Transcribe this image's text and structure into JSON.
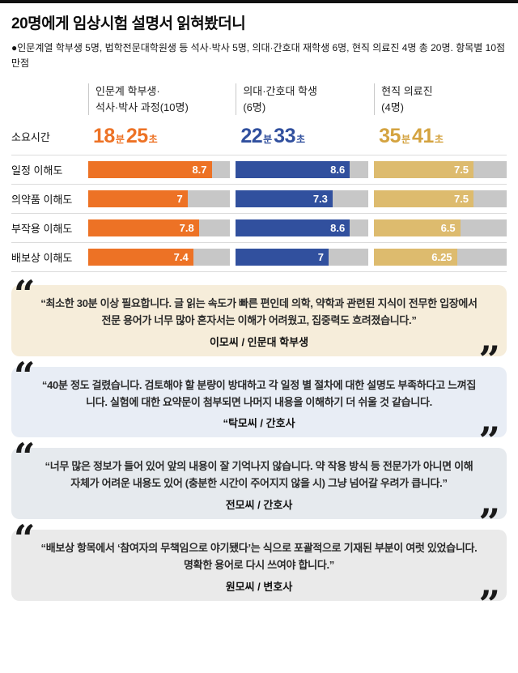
{
  "header": {
    "title": "20명에게 임상시험 설명서 읽혀봤더니",
    "subtitle": "●인문계열 학부생 5명, 법학전문대학원생 등 석사·박사 5명, 의대·간호대 재학생 6명, 현직 의료진 4명 총 20명. 항목별 10점 만점"
  },
  "chart_data": {
    "type": "bar",
    "title": "20명에게 임상시험 설명서 읽혀봤더니",
    "time_row_label": "소요시간",
    "minute_unit": "분",
    "second_unit": "초",
    "max": 10,
    "grid": false,
    "track_color": "#c7c7c7",
    "groups": [
      {
        "name": "인문계 학부생·\n석사·박사 과정(10명)",
        "bar_color": "#ED7225",
        "time_color": "#ED7225",
        "minutes": "18",
        "seconds": "25"
      },
      {
        "name": "의대·간호대 학생\n(6명)",
        "bar_color": "#31509E",
        "time_color": "#31509E",
        "minutes": "22",
        "seconds": "33"
      },
      {
        "name": "현직 의료진\n(4명)",
        "bar_color": "#DDBB6E",
        "time_color": "#D4A340",
        "minutes": "35",
        "seconds": "41"
      }
    ],
    "categories": [
      "일정 이해도",
      "의약품 이해도",
      "부작용 이해도",
      "배보상 이해도"
    ],
    "series": [
      {
        "name": "인문계 학부생·석사·박사 과정(10명)",
        "values": [
          8.7,
          7,
          7.8,
          7.4
        ]
      },
      {
        "name": "의대·간호대 학생(6명)",
        "values": [
          8.6,
          7.3,
          8.6,
          7
        ]
      },
      {
        "name": "현직 의료진(4명)",
        "values": [
          7.5,
          7.5,
          6.5,
          6.25
        ]
      }
    ]
  },
  "quote_icons": {
    "open": "“",
    "close": "”"
  },
  "quotes": [
    {
      "bg": "#F6EDDA",
      "text": "“최소한 30분 이상 필요합니다. 글 읽는 속도가 빠른 편인데 의학, 약학과 관련된 지식이 전무한 입장에서 전문 용어가 너무 많아 혼자서는 이해가 어려웠고, 집중력도 흐려졌습니다.”",
      "author": "이모씨 / 인문대 학부생"
    },
    {
      "bg": "#E8EDF5",
      "text": "“40분 정도 걸렸습니다. 검토해야 할 분량이 방대하고 각 일정 별 절차에 대한 설명도 부족하다고 느껴집니다. 실험에 대한 요약문이 첨부되면 나머지 내용을 이해하기 더 쉬울 것 같습니다.",
      "author": "“탁모씨 / 간호사"
    },
    {
      "bg": "#E6EAEE",
      "text": "“너무 많은 정보가 들어 있어 앞의 내용이 잘 기억나지 않습니다. 약 작용 방식 등 전문가가 아니면 이해 자체가 어려운 내용도 있어 (충분한 시간이 주어지지 않을 시) 그냥 넘어갈 우려가 큽니다.”",
      "author": "전모씨 / 간호사"
    },
    {
      "bg": "#EAEAEA",
      "text": "“배보상 항목에서 ‘참여자의 무책임으로 야기됐다’는 식으로 포괄적으로 기재된 부분이 여럿 있었습니다. 명확한 용어로 다시 쓰여야 합니다.”",
      "author": "원모씨 / 변호사"
    }
  ]
}
